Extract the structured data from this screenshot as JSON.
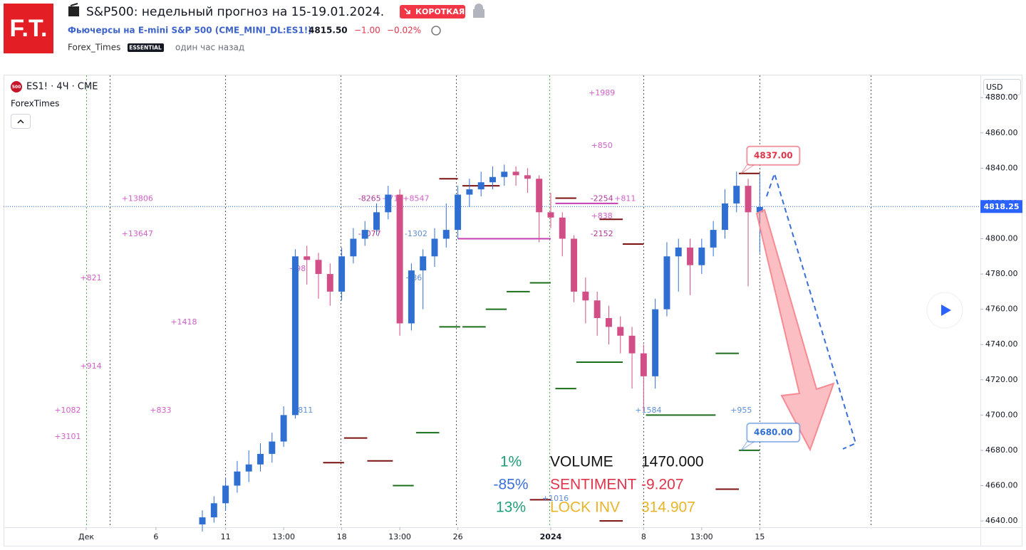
{
  "header": {
    "logo": "F.T.",
    "title": "S&P500: недельный прогноз на 15-19.01.2024.",
    "badge": "КОРОТКАЯ",
    "symbol": "Фьючерсы на E-mini S&P 500 (CME_MINI_DL:ES1!)",
    "price": "4815.50",
    "change": "−1.00",
    "change_pct": "−0.02%",
    "author": "Forex_Times",
    "author_badge": "ESSENTIAL",
    "time": "один час назад"
  },
  "chart_data": {
    "type": "candlestick",
    "symbol_label": "ES1! · 4Ч · CME",
    "symbol_icon": "500",
    "indicator": "ForexTimes",
    "currency": "USD",
    "up_color": "#2e6fd1",
    "down_color": "#d14f86",
    "xlim": [
      -3.56,
      38.5
    ],
    "ylim": [
      4636.4,
      4893
    ],
    "xticks": [
      {
        "value": 0,
        "label": "Дек"
      },
      {
        "value": 3,
        "label": "6"
      },
      {
        "value": 6,
        "label": "11"
      },
      {
        "value": 8.5,
        "label": "13:00"
      },
      {
        "value": 11,
        "label": "18"
      },
      {
        "value": 13.5,
        "label": "13:00"
      },
      {
        "value": 16,
        "label": "26"
      },
      {
        "value": 20,
        "label": "2024"
      },
      {
        "value": 24,
        "label": "8"
      },
      {
        "value": 26.5,
        "label": "13:00"
      },
      {
        "value": 29,
        "label": "15"
      }
    ],
    "yticks": [
      {
        "value": 4640,
        "label": "4640.00"
      },
      {
        "value": 4660,
        "label": "4660.00"
      },
      {
        "value": 4680,
        "label": "4680.00"
      },
      {
        "value": 4700,
        "label": "4700.00"
      },
      {
        "value": 4720,
        "label": "4720.00"
      },
      {
        "value": 4740,
        "label": "4740.00"
      },
      {
        "value": 4760,
        "label": "4760.00"
      },
      {
        "value": 4780,
        "label": "4780.00"
      },
      {
        "value": 4800,
        "label": "4800.00"
      },
      {
        "value": 4820,
        "label": "4820.00"
      },
      {
        "value": 4840,
        "label": "4840.00"
      },
      {
        "value": 4860,
        "label": "4860.00"
      },
      {
        "value": 4880,
        "label": "4880.00"
      }
    ],
    "x": [
      5,
      5.5,
      6,
      6.5,
      7,
      7.5,
      8,
      8.5,
      9,
      9.5,
      10,
      10.5,
      11,
      11.5,
      12,
      12.5,
      13,
      13.5,
      14,
      14.5,
      15,
      15.5,
      16,
      16.5,
      17,
      17.5,
      18,
      18.5,
      19,
      19.5,
      20,
      20.5,
      21,
      21.5,
      22,
      22.5,
      23,
      23.5,
      24,
      24.5,
      25,
      25.5,
      26,
      26.5,
      27,
      27.5,
      28,
      28.5,
      29
    ],
    "open": [
      4638,
      4642,
      4650,
      4660,
      4668,
      4672,
      4678,
      4685,
      4700,
      4790,
      4788,
      4780,
      4770,
      4790,
      4800,
      4805,
      4815,
      4825,
      4752,
      4782,
      4790,
      4800,
      4805,
      4825,
      4828,
      4832,
      4835,
      4838,
      4836,
      4834,
      4815,
      4812,
      4800,
      4770,
      4765,
      4755,
      4750,
      4745,
      4735,
      4722,
      4760,
      4790,
      4795,
      4785,
      4795,
      4805,
      4820,
      4830,
      4815
    ],
    "high": [
      4646,
      4654,
      4664,
      4674,
      4680,
      4684,
      4690,
      4705,
      4794,
      4796,
      4792,
      4786,
      4795,
      4806,
      4810,
      4820,
      4830,
      4828,
      4786,
      4794,
      4806,
      4820,
      4830,
      4834,
      4838,
      4841,
      4842,
      4841,
      4840,
      4836,
      4826,
      4815,
      4802,
      4778,
      4770,
      4762,
      4756,
      4750,
      4740,
      4766,
      4798,
      4800,
      4800,
      4800,
      4810,
      4828,
      4838,
      4834,
      4837
    ],
    "low": [
      4634,
      4639,
      4646,
      4656,
      4662,
      4668,
      4673,
      4682,
      4698,
      4774,
      4766,
      4762,
      4765,
      4786,
      4796,
      4802,
      4811,
      4745,
      4748,
      4760,
      4784,
      4795,
      4800,
      4818,
      4824,
      4828,
      4830,
      4830,
      4826,
      4798,
      4806,
      4790,
      4764,
      4752,
      4745,
      4740,
      4735,
      4715,
      4702,
      4715,
      4756,
      4770,
      4768,
      4780,
      4790,
      4800,
      4815,
      4773,
      4792
    ],
    "close": [
      4642,
      4650,
      4660,
      4668,
      4672,
      4678,
      4685,
      4700,
      4790,
      4788,
      4780,
      4770,
      4790,
      4800,
      4805,
      4815,
      4825,
      4752,
      4782,
      4790,
      4800,
      4805,
      4825,
      4828,
      4832,
      4835,
      4838,
      4836,
      4834,
      4815,
      4812,
      4800,
      4770,
      4765,
      4755,
      4750,
      4745,
      4735,
      4722,
      4760,
      4790,
      4795,
      4785,
      4795,
      4805,
      4820,
      4830,
      4815,
      4818
    ],
    "last_price": 4818.25,
    "callouts": [
      {
        "value": 4837,
        "label": "4837.00",
        "color": "#e0344a",
        "x": 29
      },
      {
        "value": 4680,
        "label": "4680.00",
        "color": "#2e6fd1",
        "x": 29
      }
    ],
    "levels": [
      {
        "x": [
          15.2,
          16.1
        ],
        "y": 4750,
        "color": "#1b6e1b"
      },
      {
        "x": [
          16.2,
          17.2
        ],
        "y": 4750,
        "color": "#1b6e1b"
      },
      {
        "x": [
          17.2,
          18.1
        ],
        "y": 4760,
        "color": "#1b6e1b"
      },
      {
        "x": [
          18.1,
          19.1
        ],
        "y": 4770,
        "color": "#1b6e1b"
      },
      {
        "x": [
          19.1,
          20
        ],
        "y": 4775,
        "color": "#1b6e1b"
      },
      {
        "x": [
          21.1,
          23.1
        ],
        "y": 4730,
        "color": "#1b6e1b"
      },
      {
        "x": [
          20.2,
          21.1
        ],
        "y": 4715,
        "color": "#1b6e1b"
      },
      {
        "x": [
          14.2,
          15.2
        ],
        "y": 4690,
        "color": "#1b6e1b"
      },
      {
        "x": [
          13.2,
          14.1
        ],
        "y": 4660,
        "color": "#1b6e1b"
      },
      {
        "x": [
          24.1,
          27.1
        ],
        "y": 4700,
        "color": "#1b6e1b"
      },
      {
        "x": [
          27.1,
          28.1
        ],
        "y": 4735,
        "color": "#1b6e1b"
      },
      {
        "x": [
          28.1,
          29
        ],
        "y": 4680,
        "color": "#1b6e1b"
      },
      {
        "x": [
          10.2,
          11.1
        ],
        "y": 4673,
        "color": "#7a1010"
      },
      {
        "x": [
          11.1,
          12.1
        ],
        "y": 4687,
        "color": "#7a1010"
      },
      {
        "x": [
          12.1,
          13.2
        ],
        "y": 4674,
        "color": "#7a1010"
      },
      {
        "x": [
          15.2,
          16
        ],
        "y": 4834,
        "color": "#7a1010"
      },
      {
        "x": [
          16.2,
          17.8
        ],
        "y": 4830,
        "color": "#7a1010"
      },
      {
        "x": [
          20.2,
          21.1
        ],
        "y": 4823,
        "color": "#7a1010"
      },
      {
        "x": [
          22.1,
          23.1
        ],
        "y": 4811,
        "color": "#7a1010"
      },
      {
        "x": [
          23.1,
          24
        ],
        "y": 4797,
        "color": "#7a1010"
      },
      {
        "x": [
          27.1,
          28.1
        ],
        "y": 4658,
        "color": "#7a1010"
      },
      {
        "x": [
          28.1,
          29
        ],
        "y": 4837,
        "color": "#7a1010"
      },
      {
        "x": [
          22.1,
          23.1
        ],
        "y": 4640,
        "color": "#7a1010"
      },
      {
        "x": [
          19.1,
          20
        ],
        "y": 4652,
        "color": "#7a1010"
      },
      {
        "x": [
          16,
          20
        ],
        "y": 4800,
        "color": "#c43fb0"
      },
      {
        "x": [
          20.2,
          22.9
        ],
        "y": 4820,
        "color": "#c43fb0"
      }
    ],
    "annotations": [
      {
        "text": "+1989",
        "x": 22.2,
        "y": 4882.6,
        "color": "#d060c8"
      },
      {
        "text": "+850",
        "x": 22.2,
        "y": 4852.7,
        "color": "#d060c8"
      },
      {
        "text": "+13806",
        "x": 2.2,
        "y": 4822.5,
        "color": "#d060c8"
      },
      {
        "text": "+13647",
        "x": 2.2,
        "y": 4802.7,
        "color": "#d060c8"
      },
      {
        "text": "+821",
        "x": 0.2,
        "y": 4777.6,
        "color": "#d060c8"
      },
      {
        "text": "+1418",
        "x": 4.2,
        "y": 4752.6,
        "color": "#d060c8"
      },
      {
        "text": "+914",
        "x": 0.2,
        "y": 4727.6,
        "color": "#d060c8"
      },
      {
        "text": "+1082",
        "x": -0.8,
        "y": 4702.6,
        "color": "#d060c8"
      },
      {
        "text": "+833",
        "x": 3.2,
        "y": 4702.6,
        "color": "#d060c8"
      },
      {
        "text": "+3101",
        "x": -0.8,
        "y": 4687.6,
        "color": "#d060c8"
      },
      {
        "text": "+811",
        "x": 9.3,
        "y": 4702.6,
        "color": "#5f8fd8"
      },
      {
        "text": "-8265",
        "x": 12.2,
        "y": 4822.5,
        "color": "#b03a9c"
      },
      {
        "text": "+719",
        "x": 13.2,
        "y": 4822.5,
        "color": "#d060c8"
      },
      {
        "text": "+8547",
        "x": 14.2,
        "y": 4822.5,
        "color": "#d060c8"
      },
      {
        "text": "-8077",
        "x": 12.2,
        "y": 4802.7,
        "color": "#b03a9c"
      },
      {
        "text": "-1302",
        "x": 14.2,
        "y": 4802.7,
        "color": "#5f8fd8"
      },
      {
        "text": "+86",
        "x": 14.1,
        "y": 4777.6,
        "color": "#5f8fd8"
      },
      {
        "text": "+98",
        "x": 9.1,
        "y": 4782.9,
        "color": "#d060c8"
      },
      {
        "text": "-2254",
        "x": 22.2,
        "y": 4822.5,
        "color": "#b03a9c"
      },
      {
        "text": "+811",
        "x": 23.2,
        "y": 4822.5,
        "color": "#d060c8"
      },
      {
        "text": "+838",
        "x": 22.2,
        "y": 4812.8,
        "color": "#d060c8"
      },
      {
        "text": "-2152",
        "x": 22.2,
        "y": 4802.7,
        "color": "#b03a9c"
      },
      {
        "text": "+1584",
        "x": 24.2,
        "y": 4702.6,
        "color": "#5f8fd8"
      },
      {
        "text": "+955",
        "x": 28.2,
        "y": 4702.6,
        "color": "#5f8fd8"
      },
      {
        "text": "+1016",
        "x": 20.2,
        "y": 4652.5,
        "color": "#5f8fd8"
      }
    ]
  },
  "stats": [
    {
      "share": "1%",
      "name": "VOLUME",
      "value": "1470.000",
      "share_color": "#1f9e7a",
      "color": "#111111"
    },
    {
      "share": "-85%",
      "name": "SENTIMENT",
      "value": "-9.207",
      "share_color": "#3a6fd8",
      "color": "#e0344a"
    },
    {
      "share": "13%",
      "name": "LOCK INV",
      "value": "314.907",
      "share_color": "#1f9e7a",
      "color": "#e8b52a"
    }
  ]
}
